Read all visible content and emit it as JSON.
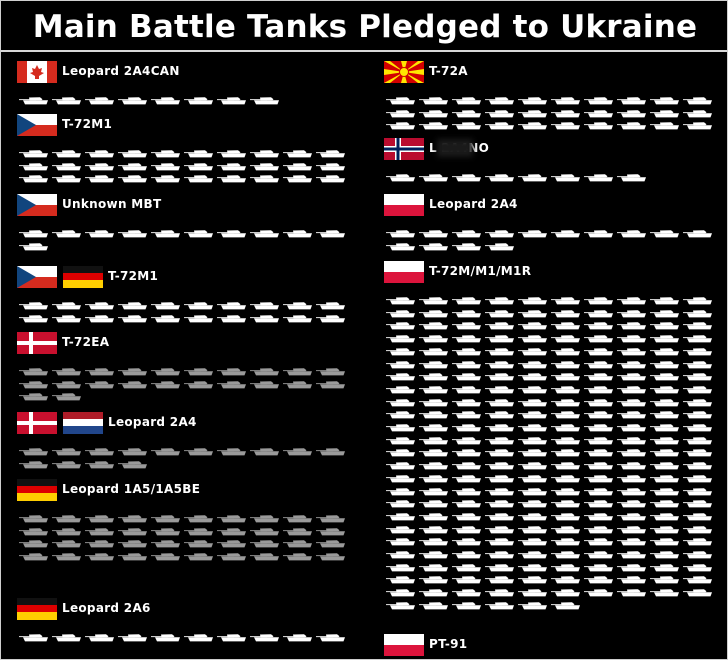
{
  "title": "Main Battle Tanks Pledged to Ukraine",
  "colors": {
    "background": "#000000",
    "tank_bright": "#ffffff",
    "tank_dim": "#9a9a9a",
    "border": "#cfcfcf"
  },
  "flags": {
    "canada": "flag-canada",
    "czechia": "flag-czechia",
    "germany": "flag-germany",
    "denmark": "flag-denmark",
    "netherlands": "flag-netherlands",
    "north_macedonia": "flag-north-macedonia",
    "norway": "flag-norway",
    "poland": "flag-poland"
  },
  "chart_data": {
    "type": "pictogram",
    "title": "Main Battle Tanks Pledged to Ukraine",
    "unit_icon": "tank-icon",
    "series": [
      {
        "label": "Leopard 2A4CAN",
        "countries": [
          "canada"
        ],
        "count": 8,
        "shade": "bright"
      },
      {
        "label": "T-72M1",
        "countries": [
          "czechia"
        ],
        "count": 30,
        "shade": "bright"
      },
      {
        "label": "Unknown MBT",
        "countries": [
          "czechia"
        ],
        "count": 11,
        "shade": "bright"
      },
      {
        "label": "T-72M1",
        "countries": [
          "czechia",
          "germany"
        ],
        "count": 20,
        "shade": "bright"
      },
      {
        "label": "T-72EA",
        "countries": [
          "denmark"
        ],
        "count": 22,
        "shade": "dim"
      },
      {
        "label": "Leopard 2A4",
        "countries": [
          "denmark",
          "netherlands"
        ],
        "count": 14,
        "shade": "dim"
      },
      {
        "label": "Leopard 1A5/1A5BE",
        "countries": [
          "germany"
        ],
        "count": 40,
        "shade": "dim"
      },
      {
        "label": "Leopard 2A6",
        "countries": [
          "germany"
        ],
        "count": 10,
        "shade": "bright"
      },
      {
        "label": "T-72A",
        "countries": [
          "north_macedonia"
        ],
        "count": 30,
        "shade": "bright"
      },
      {
        "label": "L 2A4NO",
        "countries": [
          "norway"
        ],
        "count": 8,
        "shade": "bright",
        "redacted": true
      },
      {
        "label": "Leopard 2A4",
        "countries": [
          "poland"
        ],
        "count": 14,
        "shade": "bright"
      },
      {
        "label": "T-72M/M1/M1R",
        "countries": [
          "poland"
        ],
        "count": 246,
        "shade": "bright"
      },
      {
        "label": "PT-91",
        "countries": [
          "poland"
        ],
        "count": null,
        "shade": "bright"
      }
    ]
  }
}
